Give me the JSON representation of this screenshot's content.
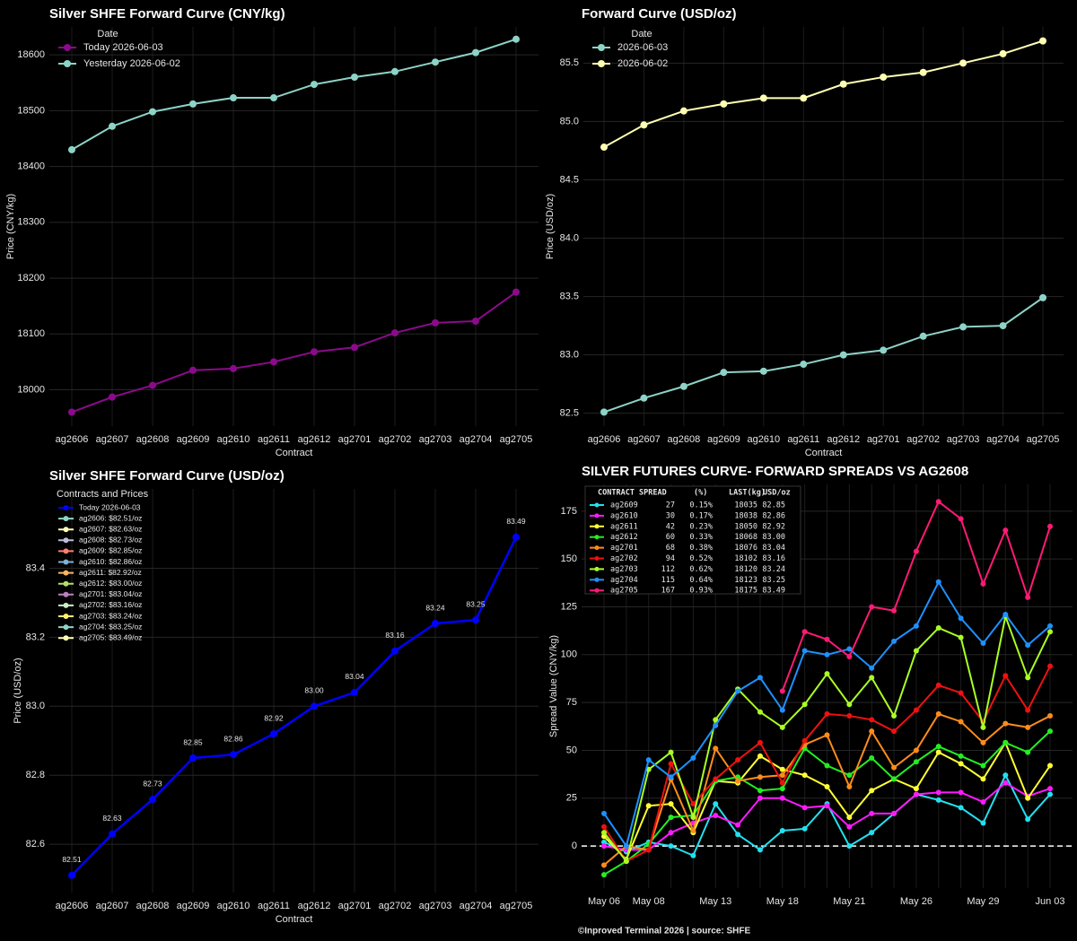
{
  "chart_data": [
    {
      "type": "line",
      "title": "Silver SHFE Forward Curve (CNY/kg)",
      "y_label": "Price (CNY/kg)",
      "x_label": "Contract",
      "categories": [
        "ag2606",
        "ag2607",
        "ag2608",
        "ag2609",
        "ag2610",
        "ag2611",
        "ag2612",
        "ag2701",
        "ag2702",
        "ag2703",
        "ag2704",
        "ag2705"
      ],
      "legend_title": "Date",
      "series": [
        {
          "name": "Today 2026-06-03",
          "color": "#8b0a8b",
          "values": [
            17960,
            17987,
            18008,
            18035,
            18038,
            18050,
            18068,
            18076,
            18102,
            18120,
            18123,
            18175
          ]
        },
        {
          "name": "Yesterday 2026-06-02",
          "color": "#8dd3c7",
          "values": [
            18430,
            18472,
            18498,
            18512,
            18523,
            18523,
            18547,
            18560,
            18570,
            18587,
            18604,
            18628
          ]
        }
      ],
      "ylim": [
        17935,
        18650
      ],
      "yticks": [
        18000,
        18100,
        18200,
        18300,
        18400,
        18500,
        18600
      ],
      "grid": true
    },
    {
      "type": "line",
      "title": "Forward Curve (USD/oz)",
      "y_label": "Price (USD/oz)",
      "x_label": "Contract",
      "categories": [
        "ag2606",
        "ag2607",
        "ag2608",
        "ag2609",
        "ag2610",
        "ag2611",
        "ag2612",
        "ag2701",
        "ag2702",
        "ag2703",
        "ag2704",
        "ag2705"
      ],
      "legend_title": "Date",
      "series": [
        {
          "name": "2026-06-03",
          "color": "#8dd3c7",
          "values": [
            82.51,
            82.63,
            82.73,
            82.85,
            82.86,
            82.92,
            83.0,
            83.04,
            83.16,
            83.24,
            83.25,
            83.49
          ]
        },
        {
          "name": "2026-06-02",
          "color": "#ffffb3",
          "values": [
            84.78,
            84.97,
            85.09,
            85.15,
            85.2,
            85.2,
            85.32,
            85.38,
            85.42,
            85.5,
            85.58,
            85.69
          ]
        }
      ],
      "ylim": [
        82.39,
        85.81
      ],
      "yticks": [
        82.5,
        {
          "value": 83,
          "label": "83.0"
        },
        83.5,
        {
          "value": 84,
          "label": "84.0"
        },
        84.5,
        {
          "value": 85,
          "label": "85.0"
        },
        85.5
      ],
      "grid": true
    },
    {
      "type": "line",
      "title": "Silver SHFE Forward Curve (USD/oz)",
      "y_label": "Price (USD/oz)",
      "x_label": "Contract",
      "categories": [
        "ag2606",
        "ag2607",
        "ag2608",
        "ag2609",
        "ag2610",
        "ag2611",
        "ag2612",
        "ag2701",
        "ag2702",
        "ag2703",
        "ag2704",
        "ag2705"
      ],
      "legend_title": "Contracts and Prices",
      "series": [
        {
          "name": "Today 2026-06-03",
          "color": "#0000ff",
          "values": [
            82.51,
            82.63,
            82.73,
            82.85,
            82.86,
            82.92,
            83.0,
            83.04,
            83.16,
            83.24,
            83.25,
            83.49
          ],
          "value_labels": [
            "82.51",
            "82.63",
            "82.73",
            "82.85",
            "82.86",
            "82.92",
            "83.00",
            "83.04",
            "83.16",
            "83.24",
            "83.25",
            "83.49"
          ]
        }
      ],
      "legend_entries": [
        {
          "label": "ag2606: $82.51/oz",
          "color": "#8dd3c7"
        },
        {
          "label": "ag2607: $82.63/oz",
          "color": "#ffffb3"
        },
        {
          "label": "ag2608: $82.73/oz",
          "color": "#bebada"
        },
        {
          "label": "ag2609: $82.85/oz",
          "color": "#fb8072"
        },
        {
          "label": "ag2610: $82.86/oz",
          "color": "#80b1d3"
        },
        {
          "label": "ag2611: $82.92/oz",
          "color": "#fdb462"
        },
        {
          "label": "ag2612: $83.00/oz",
          "color": "#b3de69"
        },
        {
          "label": "ag2701: $83.04/oz",
          "color": "#bc80bd"
        },
        {
          "label": "ag2702: $83.16/oz",
          "color": "#ccebc5"
        },
        {
          "label": "ag2703: $83.24/oz",
          "color": "#ffed6f"
        },
        {
          "label": "ag2704: $83.25/oz",
          "color": "#8dd3c7"
        },
        {
          "label": "ag2705: $83.49/oz",
          "color": "#ffffb3"
        }
      ],
      "ylim": [
        82.46,
        83.63
      ],
      "yticks": [
        82.6,
        82.8,
        {
          "value": 83,
          "label": "83.0"
        },
        83.2,
        83.4
      ],
      "grid": true
    },
    {
      "type": "line",
      "title": "SILVER FUTURES CURVE- FORWARD SPREADS VS AG2608",
      "y_label": "Spread Value (CNY/kg)",
      "categories": [
        "May 06",
        null,
        "May 08",
        null,
        null,
        "May 13",
        null,
        null,
        "May 18",
        null,
        null,
        "May 21",
        null,
        null,
        "May 26",
        null,
        null,
        "May 29",
        null,
        null,
        "Jun 03"
      ],
      "series": [
        {
          "name": "ag2609",
          "color": "#22e0f0",
          "values": [
            2,
            -3,
            2,
            0,
            -5,
            22,
            6,
            -2,
            8,
            9,
            22,
            0,
            7,
            17,
            27,
            24,
            20,
            12,
            37,
            14,
            27
          ]
        },
        {
          "name": "ag2610",
          "color": "#ff1aff",
          "values": [
            0,
            -2,
            -2,
            7,
            12,
            16,
            11,
            25,
            25,
            20,
            21,
            10,
            17,
            17,
            27,
            28,
            28,
            23,
            33,
            26,
            30
          ]
        },
        {
          "name": "ag2611",
          "color": "#ffff33",
          "values": [
            5,
            -7,
            21,
            22,
            7,
            34,
            33,
            47,
            40,
            37,
            31,
            15,
            29,
            35,
            30,
            49,
            43,
            35,
            54,
            25,
            42
          ]
        },
        {
          "name": "ag2612",
          "color": "#22ee22",
          "values": [
            -15,
            -8,
            1,
            15,
            16,
            34,
            36,
            29,
            30,
            51,
            42,
            37,
            46,
            35,
            44,
            52,
            47,
            42,
            54,
            49,
            60
          ]
        },
        {
          "name": "ag2701",
          "color": "#ff8c1a",
          "values": [
            -10,
            0,
            -2,
            35,
            8,
            51,
            34,
            36,
            37,
            53,
            58,
            31,
            60,
            41,
            50,
            69,
            65,
            54,
            64,
            62,
            68
          ]
        },
        {
          "name": "ag2702",
          "color": "#ee1111",
          "values": [
            10,
            -8,
            -2,
            43,
            22,
            35,
            45,
            54,
            33,
            55,
            69,
            68,
            66,
            60,
            71,
            84,
            80,
            65,
            89,
            71,
            94
          ]
        },
        {
          "name": "ag2703",
          "color": "#aaff22",
          "values": [
            7,
            -8,
            40,
            49,
            15,
            66,
            82,
            70,
            62,
            74,
            90,
            74,
            88,
            68,
            102,
            114,
            109,
            62,
            120,
            88,
            112
          ]
        },
        {
          "name": "ag2704",
          "color": "#1e90ff",
          "values": [
            17,
            0,
            45,
            36,
            46,
            63,
            81,
            88,
            71,
            102,
            100,
            103,
            93,
            107,
            115,
            138,
            119,
            106,
            121,
            105,
            115
          ]
        },
        {
          "name": "ag2705",
          "color": "#ff1a75",
          "values": [
            null,
            null,
            null,
            null,
            null,
            null,
            null,
            null,
            81,
            112,
            108,
            99,
            125,
            123,
            154,
            180,
            171,
            137,
            165,
            130,
            167
          ]
        }
      ],
      "legend_table": {
        "columns": [
          "CONTRACT",
          "SPREAD",
          "(%)",
          "LAST(kg)",
          "USD/oz"
        ],
        "rows": [
          {
            "spread": 27,
            "pct": "0.15%",
            "last": 18035,
            "usd": "82.85"
          },
          {
            "spread": 30,
            "pct": "0.17%",
            "last": 18038,
            "usd": "82.86"
          },
          {
            "spread": 42,
            "pct": "0.23%",
            "last": 18050,
            "usd": "82.92"
          },
          {
            "spread": 60,
            "pct": "0.33%",
            "last": 18068,
            "usd": "83.00"
          },
          {
            "spread": 68,
            "pct": "0.38%",
            "last": 18076,
            "usd": "83.04"
          },
          {
            "spread": 94,
            "pct": "0.52%",
            "last": 18102,
            "usd": "83.16"
          },
          {
            "spread": 112,
            "pct": "0.62%",
            "last": 18120,
            "usd": "83.24"
          },
          {
            "spread": 115,
            "pct": "0.64%",
            "last": 18123,
            "usd": "83.25"
          },
          {
            "spread": 167,
            "pct": "0.93%",
            "last": 18175,
            "usd": "83.49"
          }
        ]
      },
      "hline": 0,
      "ylim": [
        -22,
        189
      ],
      "yticks": [
        0,
        25,
        50,
        75,
        100,
        125,
        150,
        175
      ],
      "grid": true,
      "footer": "©Inproved Terminal 2026 | source: SHFE"
    }
  ]
}
